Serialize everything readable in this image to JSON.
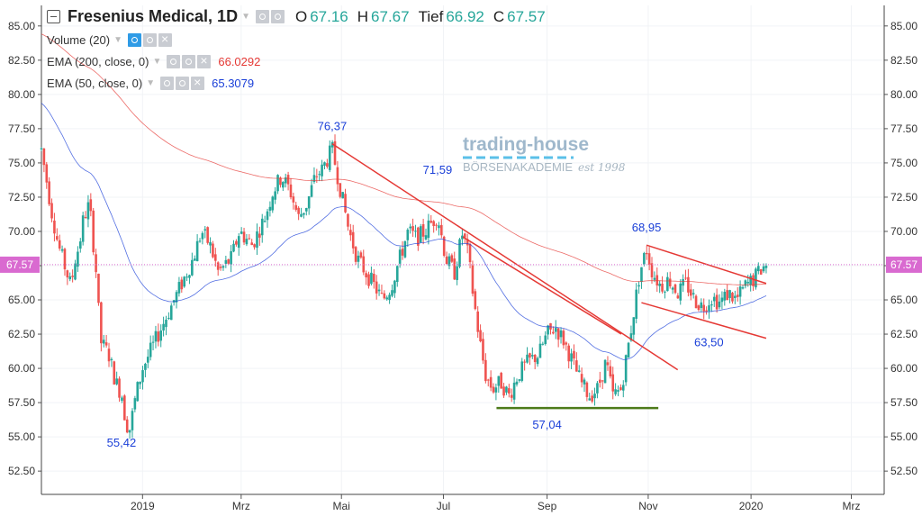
{
  "header": {
    "title": "Fresenius Medical, 1D",
    "o_label": "O",
    "o_value": "67.16",
    "h_label": "H",
    "h_value": "67.67",
    "l_label": "Tief",
    "l_value": "66.92",
    "c_label": "C",
    "c_value": "67.57"
  },
  "indicators": [
    {
      "label": "Volume (20)",
      "value": ""
    },
    {
      "label": "EMA (200, close, 0)",
      "value": "66.0292",
      "color": "#e53935"
    },
    {
      "label": "EMA (50, close, 0)",
      "value": "65.3079",
      "color": "#1a3fd8"
    }
  ],
  "watermark": {
    "line1": "trading-house",
    "line2": "BÖRSENAKADEMIE",
    "line3": "est 1998"
  },
  "chart_data": {
    "type": "candlestick",
    "y_axis_ticks": [
      "52.50",
      "55.00",
      "57.50",
      "60.00",
      "62.50",
      "65.00",
      "67.50",
      "70.00",
      "72.50",
      "75.00",
      "77.50",
      "80.00",
      "82.50",
      "85.00"
    ],
    "ylim": [
      50.8,
      86.5
    ],
    "x_axis_labels": [
      {
        "label": "2019",
        "t": 0.12
      },
      {
        "label": "Mrz",
        "t": 0.237
      },
      {
        "label": "Mai",
        "t": 0.356
      },
      {
        "label": "Jul",
        "t": 0.477
      },
      {
        "label": "Sep",
        "t": 0.6
      },
      {
        "label": "Nov",
        "t": 0.72
      },
      {
        "label": "2020",
        "t": 0.842
      },
      {
        "label": "Mrz",
        "t": 0.961
      }
    ],
    "last_price": "67.57",
    "last_price_value": 67.57,
    "ema200_color": "#e53935",
    "ema50_color": "#1a3fd8",
    "up_color": "#26a69a",
    "down_color": "#ef5350",
    "annotations": [
      {
        "text": "76,37",
        "t": 0.345,
        "y": 77.4
      },
      {
        "text": "71,59",
        "t": 0.47,
        "y": 74.2
      },
      {
        "text": "68,95",
        "t": 0.718,
        "y": 70.0
      },
      {
        "text": "63,50",
        "t": 0.792,
        "y": 61.6
      },
      {
        "text": "55,42",
        "t": 0.095,
        "y": 54.3
      },
      {
        "text": "57,04",
        "t": 0.6,
        "y": 55.6
      }
    ],
    "trendlines": [
      {
        "t1": 0.345,
        "y1": 76.4,
        "t2": 0.755,
        "y2": 59.9,
        "color": "#e53935"
      },
      {
        "t1": 0.5,
        "y1": 69.6,
        "t2": 0.688,
        "y2": 62.5,
        "color": "#e53935"
      },
      {
        "t1": 0.718,
        "y1": 69.0,
        "t2": 0.86,
        "y2": 66.2,
        "color": "#e53935"
      },
      {
        "t1": 0.712,
        "y1": 64.8,
        "t2": 0.86,
        "y2": 62.2,
        "color": "#e53935"
      },
      {
        "t1": 0.54,
        "y1": 57.1,
        "t2": 0.732,
        "y2": 57.1,
        "color": "#4c7a1a"
      }
    ]
  }
}
